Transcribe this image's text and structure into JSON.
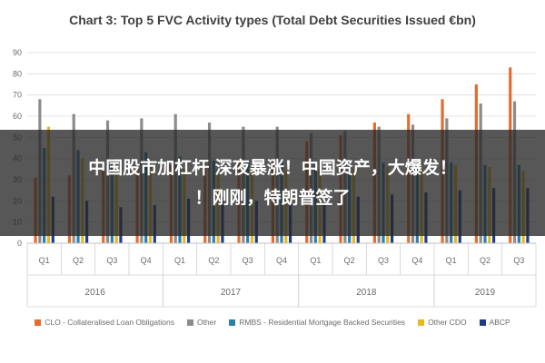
{
  "chart_data": {
    "type": "bar",
    "title": "Chart 3: Top 5 FVC Activity types (Total Debt Securities Issued €bn)",
    "ylim": [
      0,
      90
    ],
    "yticks": [
      0,
      10,
      20,
      30,
      40,
      50,
      60,
      70,
      80,
      90
    ],
    "grid": true,
    "legend_position": "bottom",
    "categories": [
      "Q1",
      "Q2",
      "Q3",
      "Q4",
      "Q1",
      "Q2",
      "Q3",
      "Q4",
      "Q1",
      "Q2",
      "Q3",
      "Q4",
      "Q1",
      "Q2",
      "Q3"
    ],
    "year_groups": [
      {
        "label": "2016",
        "count": 4
      },
      {
        "label": "2017",
        "count": 4
      },
      {
        "label": "2018",
        "count": 4
      },
      {
        "label": "2019",
        "count": 3
      }
    ],
    "series": [
      {
        "name": "CLO - Collateralised Loan Obligations",
        "color": "#e46c2f",
        "values": [
          31,
          32,
          34,
          36,
          37,
          38,
          39,
          39,
          48,
          51,
          57,
          61,
          68,
          75,
          83
        ]
      },
      {
        "name": "Other",
        "color": "#8c8c8c",
        "values": [
          68,
          61,
          58,
          59,
          61,
          57,
          55,
          55,
          52,
          53,
          55,
          56,
          59,
          66,
          67
        ]
      },
      {
        "name": "RMBS - Residential Mortgage Backed Securities",
        "color": "#2b7fad",
        "values": [
          45,
          44,
          40,
          43,
          41,
          39,
          39,
          38,
          38,
          38,
          38,
          38,
          38,
          37,
          37
        ]
      },
      {
        "name": "Other CDO",
        "color": "#e8b820",
        "values": [
          55,
          40,
          37,
          36,
          35,
          35,
          35,
          34,
          35,
          35,
          36,
          36,
          37,
          36,
          34
        ]
      },
      {
        "name": "ABCP",
        "color": "#1f3c88",
        "values": [
          22,
          20,
          17,
          18,
          21,
          22,
          20,
          20,
          20,
          22,
          23,
          24,
          25,
          26,
          26
        ]
      }
    ]
  },
  "overlay": {
    "line1": "中国股市加杠杆 深夜暴涨！中国资产，大爆发！",
    "line2": "！刚刚，特朗普签了"
  }
}
